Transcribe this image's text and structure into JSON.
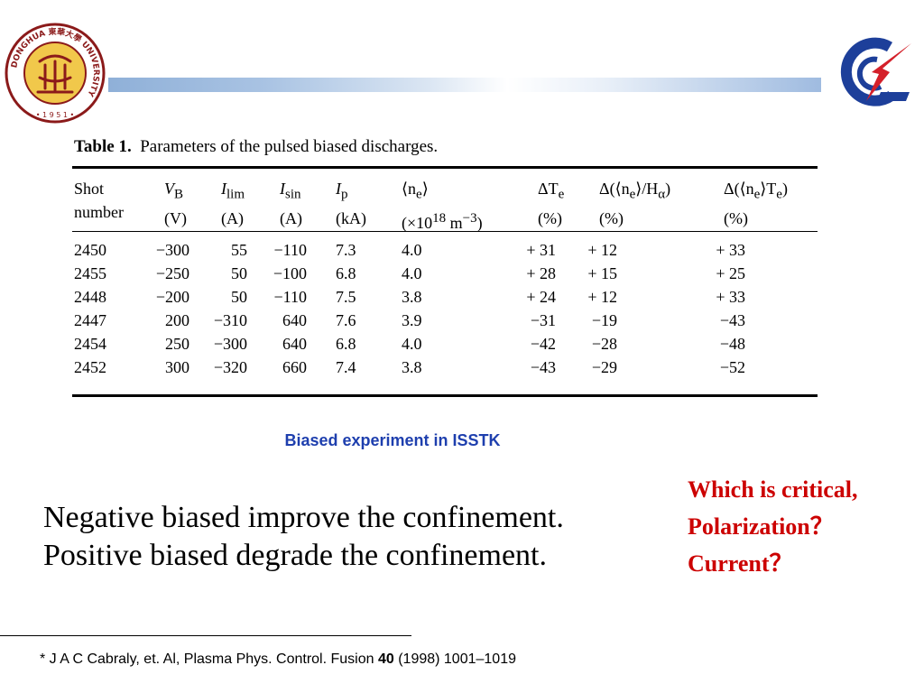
{
  "header": {
    "left_logo": {
      "icon": "university-seal-icon",
      "ring_text": "DONGHUA 東華大學 UNIVERSITY",
      "year": "• 1 9 5 1 •",
      "colors": {
        "ring": "#8b1a1a",
        "field": "#f1c84b"
      }
    },
    "right_logo": {
      "icon": "institute-logo-icon",
      "colors": {
        "arc": "#1d3f9a",
        "bolt": "#d4202a"
      }
    },
    "bar_color": "#8fb0d8"
  },
  "table": {
    "label": "Table 1.",
    "caption": "Parameters of the pulsed biased discharges.",
    "header_line1": [
      "Shot",
      "V",
      "I",
      "I",
      "I",
      "⟨n",
      "ΔT",
      "Δ(⟨n",
      "Δ(⟨n"
    ],
    "header_subs": [
      "",
      "B",
      "lim",
      "sin",
      "p",
      "e",
      "e",
      "e",
      "e"
    ],
    "header_tails": [
      "",
      "",
      "",
      "",
      "",
      "⟩",
      "",
      "⟩/H",
      "⟩T"
    ],
    "header_tail_subs": [
      "",
      "",
      "",
      "",
      "",
      "",
      "",
      "α",
      "e"
    ],
    "header_closers": [
      "",
      "",
      "",
      "",
      "",
      "",
      "",
      ")",
      ")"
    ],
    "header_line2": [
      "number",
      "(V)",
      "(A)",
      "(A)",
      "(kA)",
      "(×10",
      "(%)",
      "(%)",
      "(%)"
    ],
    "unit_sup": "18",
    "unit_tail": " m",
    "unit_tail_sup": "−3",
    "unit_close": ")",
    "rows": [
      [
        "2450",
        "−300",
        "55",
        "−110",
        "7.3",
        "4.0",
        "+ 31",
        "+ 12",
        "+ 33"
      ],
      [
        "2455",
        "−250",
        "50",
        "−100",
        "6.8",
        "4.0",
        "+ 28",
        "+ 15",
        "+ 25"
      ],
      [
        "2448",
        "−200",
        "50",
        "−110",
        "7.5",
        "3.8",
        "+ 24",
        "+ 12",
        "+ 33"
      ],
      [
        "2447",
        "200",
        "−310",
        "640",
        "7.6",
        "3.9",
        "−31",
        "−19",
        "−43"
      ],
      [
        "2454",
        "250",
        "−300",
        "640",
        "6.8",
        "4.0",
        "−42",
        "−28",
        "−48"
      ],
      [
        "2452",
        "300",
        "−320",
        "660",
        "7.4",
        "3.8",
        "−43",
        "−29",
        "−52"
      ]
    ]
  },
  "table_title": "Biased experiment in ISSTK",
  "title_color": "#1e3fae",
  "question": {
    "lines": [
      "Which is critical,",
      "Polarization？",
      "Current？"
    ],
    "color": "#cc0000"
  },
  "conclusion": {
    "lines": [
      "Negative biased improve the confinement.",
      "Positive biased degrade the confinement."
    ]
  },
  "footnote": {
    "text_before": "* J A C Cabraly, et. Al, Plasma Phys. Control. Fusion ",
    "volume": "40",
    "text_after": " (1998) 1001–1019"
  }
}
